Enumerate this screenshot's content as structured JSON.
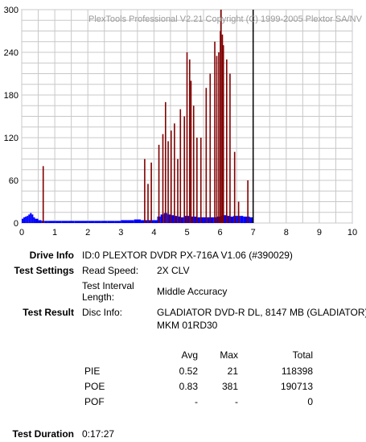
{
  "chart_data": {
    "type": "bar",
    "title": "PlexTools Professional V2.21 Copyright (C) 1999-2005 Plextor SA/NV",
    "xlim": [
      0,
      10
    ],
    "ylim": [
      0,
      300
    ],
    "x_ticks": [
      0,
      1,
      2,
      3,
      4,
      5,
      6,
      7,
      8,
      9,
      10
    ],
    "y_ticks": [
      0,
      60,
      120,
      180,
      240,
      300
    ],
    "grid": true,
    "test_end_marker_x": 7.0,
    "series": [
      {
        "color": "#0000ff",
        "x": [
          0.0,
          0.05,
          0.1,
          0.15,
          0.2,
          0.25,
          0.3,
          0.35,
          0.4,
          0.5,
          0.6,
          0.7,
          0.8,
          1.0,
          1.2,
          1.4,
          1.6,
          1.8,
          2.0,
          2.2,
          2.4,
          2.6,
          2.8,
          3.0,
          3.2,
          3.4,
          3.6,
          3.8,
          4.0,
          4.1,
          4.2,
          4.3,
          4.4,
          4.5,
          4.6,
          4.7,
          4.8,
          4.9,
          5.0,
          5.1,
          5.2,
          5.3,
          5.4,
          5.5,
          5.6,
          5.7,
          5.8,
          5.9,
          6.0,
          6.1,
          6.2,
          6.3,
          6.4,
          6.5,
          6.6,
          6.7,
          6.8,
          6.9,
          7.0
        ],
        "y": [
          6,
          8,
          9,
          10,
          12,
          14,
          12,
          8,
          6,
          4,
          3,
          3,
          3,
          3,
          3,
          3,
          3,
          3,
          3,
          3,
          3,
          3,
          3,
          4,
          4,
          5,
          4,
          4,
          4,
          9,
          12,
          14,
          12,
          11,
          10,
          9,
          8,
          10,
          10,
          9,
          9,
          8,
          8,
          8,
          8,
          8,
          8,
          9,
          10,
          11,
          10,
          9,
          10,
          10,
          10,
          9,
          9,
          8,
          8
        ]
      },
      {
        "color": "#800000",
        "x": [
          0.65,
          3.72,
          3.82,
          3.92,
          4.15,
          4.27,
          4.35,
          4.43,
          4.52,
          4.62,
          4.72,
          4.8,
          4.92,
          5.0,
          5.08,
          5.12,
          5.2,
          5.3,
          5.42,
          5.58,
          5.7,
          5.84,
          5.9,
          5.96,
          6.01,
          6.03,
          6.07,
          6.1,
          6.2,
          6.3,
          6.44,
          6.56,
          6.84
        ],
        "y": [
          80,
          90,
          55,
          85,
          110,
          125,
          170,
          115,
          130,
          140,
          90,
          160,
          150,
          240,
          230,
          200,
          165,
          120,
          120,
          190,
          210,
          255,
          235,
          240,
          270,
          300,
          265,
          250,
          230,
          210,
          100,
          30,
          60
        ]
      }
    ]
  },
  "info": {
    "drive_info_label": "Drive Info",
    "drive_info_value": "ID:0 PLEXTOR DVDR PX-716A V1.06 (#390029)",
    "test_settings_label": "Test Settings",
    "read_speed_label": "Read Speed:",
    "read_speed_value": "2X CLV",
    "interval_label_1": "Test Interval",
    "interval_label_2": "Length:",
    "interval_value": "Middle Accuracy",
    "test_result_label": "Test Result",
    "disc_info_label": "Disc Info:",
    "disc_info_line1": "GLADIATOR DVD-R DL, 8147 MB (GLADIATOR)",
    "disc_info_line2": "MKM 01RD30",
    "test_duration_label": "Test Duration",
    "test_duration_value": "0:17:27"
  },
  "stats": {
    "headers": {
      "avg": "Avg",
      "max": "Max",
      "total": "Total"
    },
    "rows": [
      {
        "name": "PIE",
        "avg": "0.52",
        "max": "21",
        "total": "118398"
      },
      {
        "name": "POE",
        "avg": "0.83",
        "max": "381",
        "total": "190713"
      },
      {
        "name": "POF",
        "avg": "-",
        "max": "-",
        "total": "0"
      }
    ]
  }
}
